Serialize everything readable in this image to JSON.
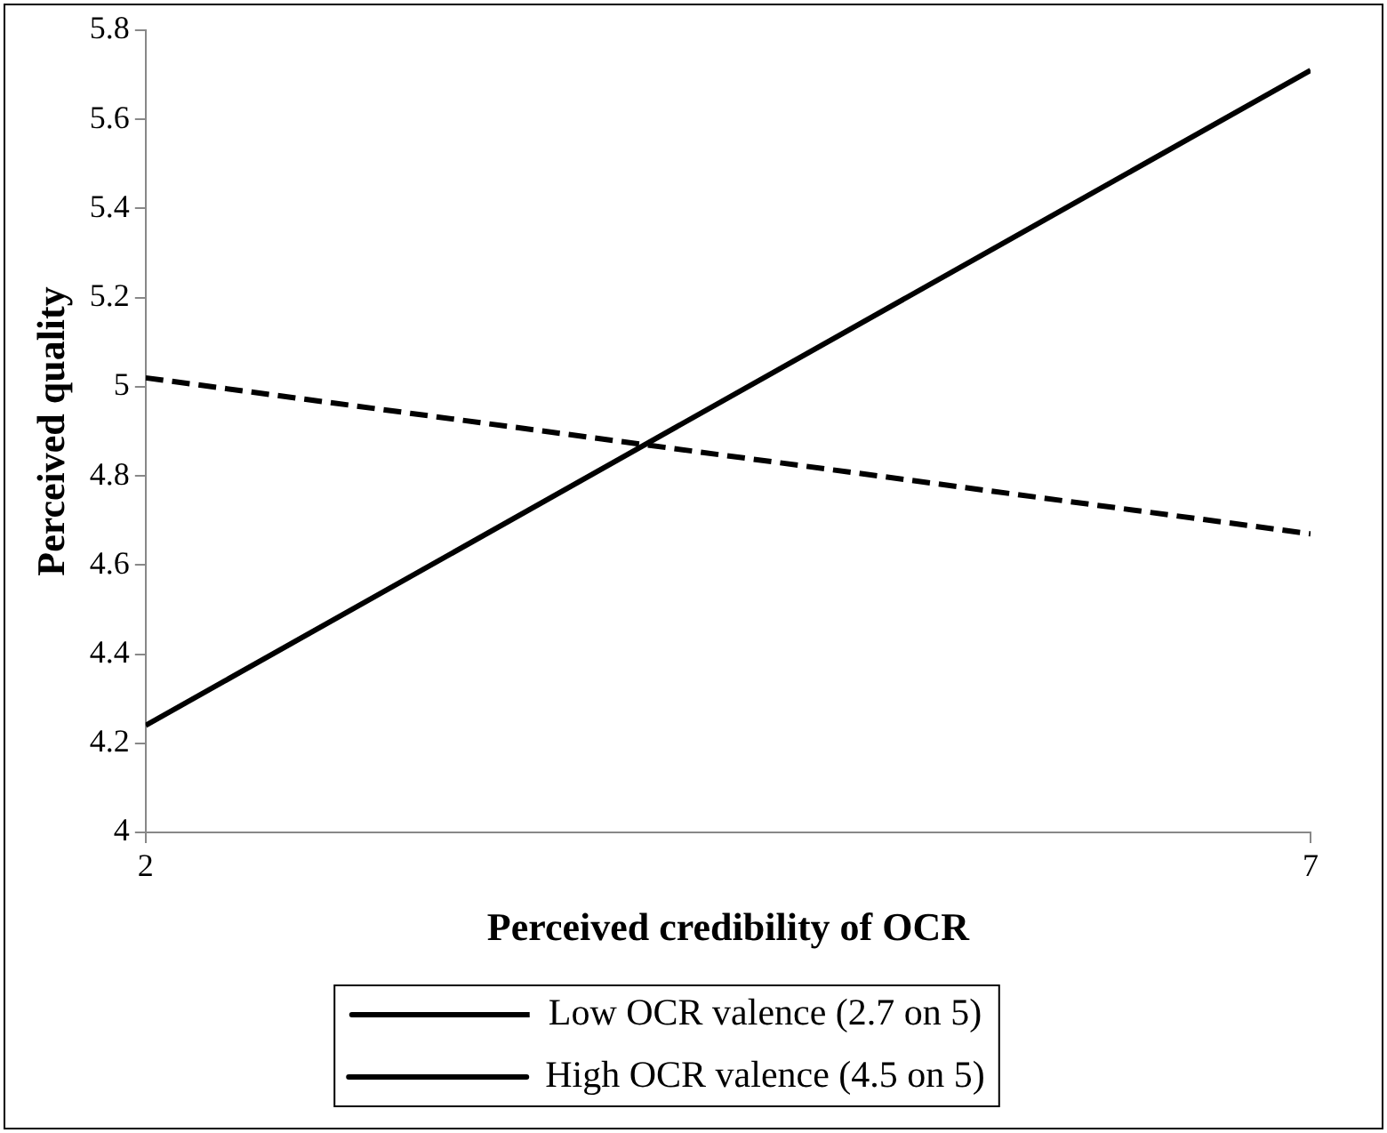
{
  "chart_data": {
    "type": "line",
    "xlabel": "Perceived credibility of OCR",
    "ylabel": "Perceived quality",
    "x": [
      2,
      7
    ],
    "xlim": [
      2,
      7
    ],
    "xticks": [
      2,
      7
    ],
    "ylim": [
      4,
      5.8
    ],
    "yticks": [
      4,
      4.2,
      4.4,
      4.6,
      4.8,
      5,
      5.2,
      5.4,
      5.6,
      5.8
    ],
    "grid": false,
    "legend": "bottom",
    "marker": "none",
    "series": [
      {
        "name": "Low OCR valence (2.7 on 5)",
        "color": "#000000",
        "values": [
          5.02,
          4.67
        ],
        "line_style": "dashed"
      },
      {
        "name": "High OCR valence (4.5 on 5)",
        "color": "#000000",
        "values": [
          4.24,
          5.71
        ],
        "line_style": "solid"
      }
    ]
  }
}
